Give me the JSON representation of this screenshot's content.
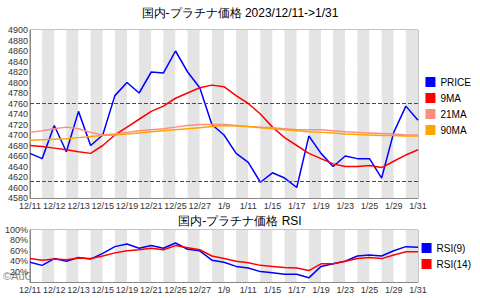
{
  "chart_data": [
    {
      "type": "line",
      "title": "国内-プラチナ価格 2023/12/11->1/31",
      "categories": [
        "12/11",
        null,
        "12/12",
        null,
        "12/13",
        null,
        "12/15",
        null,
        "12/19",
        null,
        "12/21",
        null,
        "12/25",
        null,
        "12/27",
        null,
        "1/9",
        null,
        "1/11",
        null,
        "1/15",
        null,
        "1/17",
        null,
        "1/19",
        null,
        "1/23",
        null,
        "1/25",
        null,
        "1/29",
        null,
        "1/31"
      ],
      "series": [
        {
          "name": "PRICE",
          "color": "#0000ff",
          "values": [
            4665,
            4655,
            4718,
            4668,
            4745,
            4680,
            4700,
            4775,
            4800,
            4780,
            4820,
            4818,
            4860,
            4820,
            4790,
            4720,
            4700,
            4665,
            4648,
            4610,
            4628,
            4618,
            4600,
            4698,
            4665,
            4640,
            4660,
            4655,
            4655,
            4618,
            4705,
            4755,
            4728
          ]
        },
        {
          "name": "9MA",
          "color": "#ff0000",
          "values": [
            4680,
            4678,
            4675,
            4672,
            4668,
            4665,
            4680,
            4700,
            4715,
            4730,
            4745,
            4755,
            4770,
            4780,
            4790,
            4795,
            4792,
            4775,
            4760,
            4740,
            4715,
            4695,
            4680,
            4665,
            4655,
            4645,
            4640,
            4640,
            4642,
            4638,
            4650,
            4662,
            4672
          ]
        },
        {
          "name": "21MA",
          "color": "#ff8c80",
          "values": [
            4705,
            4708,
            4712,
            4715,
            4712,
            4705,
            4700,
            4702,
            4705,
            4708,
            4710,
            4712,
            4715,
            4718,
            4720,
            4720,
            4720,
            4718,
            4716,
            4715,
            4714,
            4712,
            4710,
            4710,
            4710,
            4708,
            4706,
            4705,
            4704,
            4703,
            4702,
            4700,
            4700
          ]
        },
        {
          "name": "90MA",
          "color": "#ffa500",
          "values": [
            4690,
            4691,
            4692,
            4693,
            4695,
            4697,
            4699,
            4700,
            4702,
            4704,
            4706,
            4708,
            4710,
            4712,
            4714,
            4716,
            4718,
            4717,
            4716,
            4714,
            4712,
            4710,
            4708,
            4706,
            4705,
            4704,
            4702,
            4701,
            4700,
            4699,
            4699,
            4698,
            4698
          ]
        }
      ],
      "reference_lines": [
        {
          "value": 4760,
          "color": "#ff0000",
          "line_style": "dashed"
        },
        {
          "value": 4612,
          "color": "#ff0000",
          "line_style": "dashed"
        }
      ],
      "ylim": [
        4580,
        4900
      ],
      "yticks": [
        4580,
        4600,
        4620,
        4640,
        4660,
        4680,
        4700,
        4720,
        4740,
        4760,
        4780,
        4800,
        4820,
        4840,
        4860,
        4880,
        4900
      ],
      "grid": true,
      "legend": "right",
      "annotations": []
    },
    {
      "type": "line",
      "title": "国内-プラチナ価格 RSI",
      "categories": [
        "12/11",
        null,
        "12/12",
        null,
        "12/13",
        null,
        "12/15",
        null,
        "12/19",
        null,
        "12/21",
        null,
        "12/25",
        null,
        "12/27",
        null,
        "1/9",
        null,
        "1/11",
        null,
        "1/15",
        null,
        "1/17",
        null,
        "1/19",
        null,
        "1/23",
        null,
        "1/25",
        null,
        "1/29",
        null,
        "1/31"
      ],
      "series": [
        {
          "name": "RSI(9)",
          "color": "#0000ff",
          "values": [
            38,
            32,
            45,
            40,
            47,
            44,
            55,
            68,
            73,
            65,
            70,
            65,
            75,
            63,
            60,
            42,
            38,
            30,
            27,
            20,
            18,
            15,
            15,
            8,
            30,
            35,
            40,
            50,
            52,
            50,
            60,
            68,
            67
          ]
        },
        {
          "name": "RSI(14)",
          "color": "#ff0000",
          "values": [
            45,
            42,
            44,
            43,
            46,
            45,
            50,
            56,
            60,
            62,
            65,
            62,
            70,
            66,
            62,
            50,
            45,
            40,
            37,
            32,
            30,
            28,
            27,
            22,
            35,
            35,
            40,
            45,
            47,
            45,
            52,
            58,
            58
          ]
        }
      ],
      "reference_lines": [],
      "ylim": [
        0,
        100
      ],
      "yticks": [
        {
          "value": 20,
          "label": "20%"
        },
        {
          "value": 40,
          "label": "40%"
        },
        {
          "value": 60,
          "label": "60%"
        },
        {
          "value": 80,
          "label": "80%"
        },
        {
          "value": 100,
          "label": "100%"
        }
      ],
      "grid": true,
      "legend": "right",
      "annotations": [
        "©AuGroovy"
      ]
    }
  ]
}
